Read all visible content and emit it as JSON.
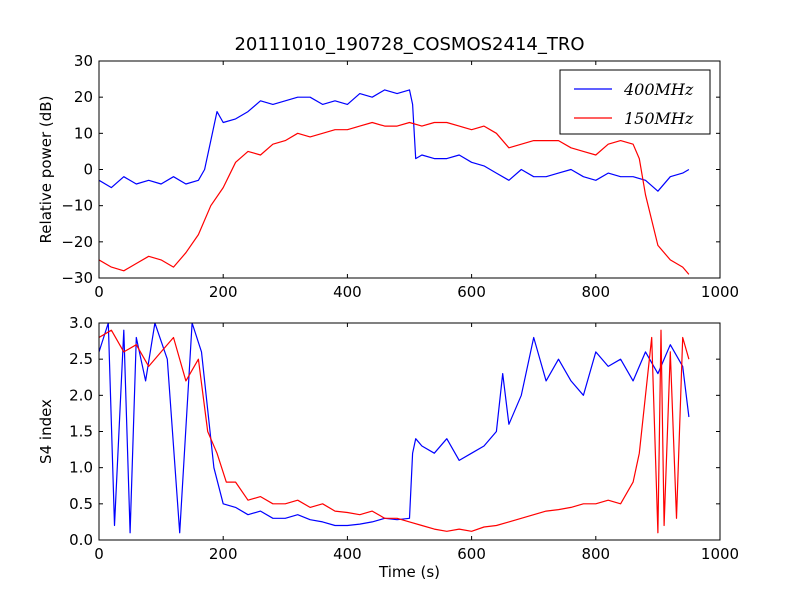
{
  "chart_data": [
    {
      "type": "line",
      "title": "20111010_190728_COSMOS2414_TRO",
      "xlabel": "",
      "ylabel": "Relative power (dB)",
      "xlim": [
        0,
        1000
      ],
      "ylim": [
        -30,
        30
      ],
      "xticks": [
        "0",
        "200",
        "400",
        "600",
        "800",
        "1000"
      ],
      "yticks": [
        "30",
        "20",
        "10",
        "0",
        "−10",
        "−20",
        "−30"
      ],
      "legend": {
        "position": "top-right",
        "entries": [
          "400MHz",
          "150MHz"
        ]
      },
      "series": [
        {
          "name": "400MHz",
          "color": "#0000ff",
          "x": [
            0,
            20,
            40,
            60,
            80,
            100,
            120,
            140,
            160,
            170,
            180,
            190,
            200,
            220,
            240,
            260,
            280,
            300,
            320,
            340,
            360,
            380,
            400,
            420,
            440,
            460,
            480,
            500,
            505,
            510,
            520,
            540,
            560,
            580,
            600,
            620,
            640,
            660,
            680,
            700,
            720,
            740,
            760,
            780,
            800,
            820,
            840,
            860,
            880,
            900,
            920,
            940,
            950
          ],
          "y": [
            -3,
            -5,
            -2,
            -4,
            -3,
            -4,
            -2,
            -4,
            -3,
            0,
            8,
            16,
            13,
            14,
            16,
            19,
            18,
            19,
            20,
            20,
            18,
            19,
            18,
            21,
            20,
            22,
            21,
            22,
            18,
            3,
            4,
            3,
            3,
            4,
            2,
            1,
            -1,
            -3,
            0,
            -2,
            -2,
            -1,
            0,
            -2,
            -3,
            -1,
            -2,
            -2,
            -3,
            -6,
            -2,
            -1,
            0
          ]
        },
        {
          "name": "150MHz",
          "color": "#ff0000",
          "x": [
            0,
            20,
            40,
            60,
            80,
            100,
            120,
            140,
            160,
            180,
            200,
            220,
            240,
            260,
            280,
            300,
            320,
            340,
            360,
            380,
            400,
            420,
            440,
            460,
            480,
            500,
            520,
            540,
            560,
            580,
            600,
            620,
            640,
            660,
            680,
            700,
            720,
            740,
            760,
            780,
            800,
            820,
            840,
            860,
            870,
            880,
            890,
            900,
            920,
            940,
            950
          ],
          "y": [
            -25,
            -27,
            -28,
            -26,
            -24,
            -25,
            -27,
            -23,
            -18,
            -10,
            -5,
            2,
            5,
            4,
            7,
            8,
            10,
            9,
            10,
            11,
            11,
            12,
            13,
            12,
            12,
            13,
            12,
            13,
            13,
            12,
            11,
            12,
            10,
            6,
            7,
            8,
            8,
            8,
            6,
            5,
            4,
            7,
            8,
            7,
            3,
            -7,
            -14,
            -21,
            -25,
            -27,
            -29
          ]
        }
      ]
    },
    {
      "type": "line",
      "title": "",
      "xlabel": "Time (s)",
      "ylabel": "S4 index",
      "xlim": [
        0,
        1000
      ],
      "ylim": [
        0,
        3
      ],
      "xticks": [
        "0",
        "200",
        "400",
        "600",
        "800",
        "1000"
      ],
      "yticks": [
        "3.0",
        "2.5",
        "2.0",
        "1.5",
        "1.0",
        "0.5",
        "0.0"
      ],
      "series": [
        {
          "name": "400MHz",
          "color": "#0000ff",
          "x": [
            0,
            15,
            25,
            40,
            50,
            60,
            75,
            90,
            110,
            130,
            150,
            165,
            175,
            185,
            200,
            220,
            240,
            260,
            280,
            300,
            320,
            340,
            360,
            380,
            400,
            420,
            440,
            460,
            480,
            500,
            505,
            510,
            520,
            540,
            560,
            580,
            600,
            620,
            640,
            650,
            660,
            680,
            700,
            720,
            740,
            760,
            780,
            800,
            820,
            840,
            860,
            880,
            900,
            920,
            940,
            950
          ],
          "y": [
            2.6,
            3.0,
            0.2,
            2.9,
            0.1,
            2.8,
            2.2,
            3.0,
            2.5,
            0.1,
            3.0,
            2.6,
            1.8,
            1.0,
            0.5,
            0.45,
            0.35,
            0.4,
            0.3,
            0.3,
            0.35,
            0.28,
            0.25,
            0.2,
            0.2,
            0.22,
            0.25,
            0.3,
            0.28,
            0.3,
            1.2,
            1.4,
            1.3,
            1.2,
            1.4,
            1.1,
            1.2,
            1.3,
            1.5,
            2.3,
            1.6,
            2.0,
            2.8,
            2.2,
            2.5,
            2.2,
            2.0,
            2.6,
            2.4,
            2.5,
            2.2,
            2.6,
            2.3,
            2.7,
            2.4,
            1.7
          ]
        },
        {
          "name": "150MHz",
          "color": "#ff0000",
          "x": [
            0,
            20,
            40,
            60,
            80,
            100,
            120,
            140,
            160,
            175,
            190,
            205,
            220,
            240,
            260,
            280,
            300,
            320,
            340,
            360,
            380,
            400,
            420,
            440,
            460,
            480,
            500,
            520,
            540,
            560,
            580,
            600,
            620,
            640,
            660,
            680,
            700,
            720,
            740,
            760,
            780,
            800,
            820,
            840,
            860,
            870,
            880,
            890,
            900,
            905,
            910,
            920,
            930,
            940,
            950
          ],
          "y": [
            2.8,
            2.9,
            2.6,
            2.7,
            2.4,
            2.6,
            2.8,
            2.2,
            2.5,
            1.5,
            1.2,
            0.8,
            0.8,
            0.55,
            0.6,
            0.5,
            0.5,
            0.55,
            0.45,
            0.5,
            0.4,
            0.38,
            0.35,
            0.4,
            0.3,
            0.3,
            0.25,
            0.2,
            0.15,
            0.12,
            0.15,
            0.12,
            0.18,
            0.2,
            0.25,
            0.3,
            0.35,
            0.4,
            0.42,
            0.45,
            0.5,
            0.5,
            0.55,
            0.5,
            0.8,
            1.2,
            2.0,
            2.8,
            0.1,
            2.9,
            0.2,
            2.6,
            0.3,
            2.8,
            2.5
          ]
        }
      ]
    }
  ]
}
